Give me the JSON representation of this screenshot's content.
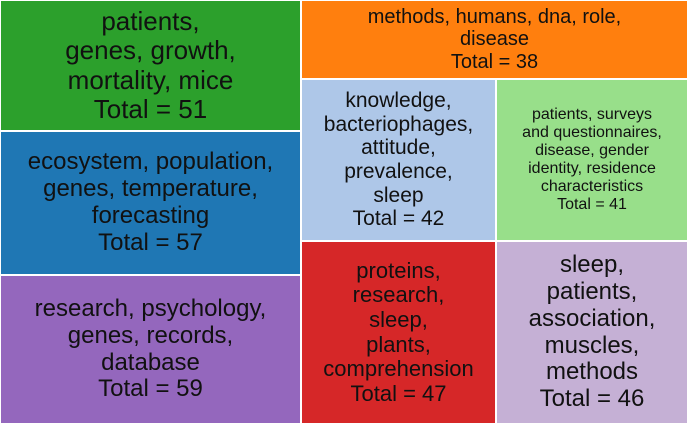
{
  "chart_data": {
    "type": "treemap",
    "value_prefix": "Total = ",
    "tiles": [
      {
        "label": "patients,\ngenes, growth,\nmortality, mice",
        "value": 51,
        "color": "#2ca02c"
      },
      {
        "label": "ecosystem, population,\ngenes, temperature,\nforecasting",
        "value": 57,
        "color": "#1f77b4"
      },
      {
        "label": "research, psychology,\ngenes, records,\ndatabase",
        "value": 59,
        "color": "#9467bd"
      },
      {
        "label": "methods, humans, dna, role,\ndisease",
        "value": 38,
        "color": "#ff7f0e"
      },
      {
        "label": "knowledge,\nbacteriophages,\nattitude,\nprevalence,\nsleep",
        "value": 42,
        "color": "#aec7e8"
      },
      {
        "label": "patients, surveys\nand questionnaires,\ndisease, gender\nidentity, residence\ncharacteristics",
        "value": 41,
        "color": "#98df8a"
      },
      {
        "label": "proteins,\nresearch,\nsleep,\nplants,\ncomprehension",
        "value": 47,
        "color": "#d62728"
      },
      {
        "label": "sleep,\npatients,\nassociation,\nmuscles,\nmethods",
        "value": 46,
        "color": "#c5b0d5"
      }
    ]
  }
}
